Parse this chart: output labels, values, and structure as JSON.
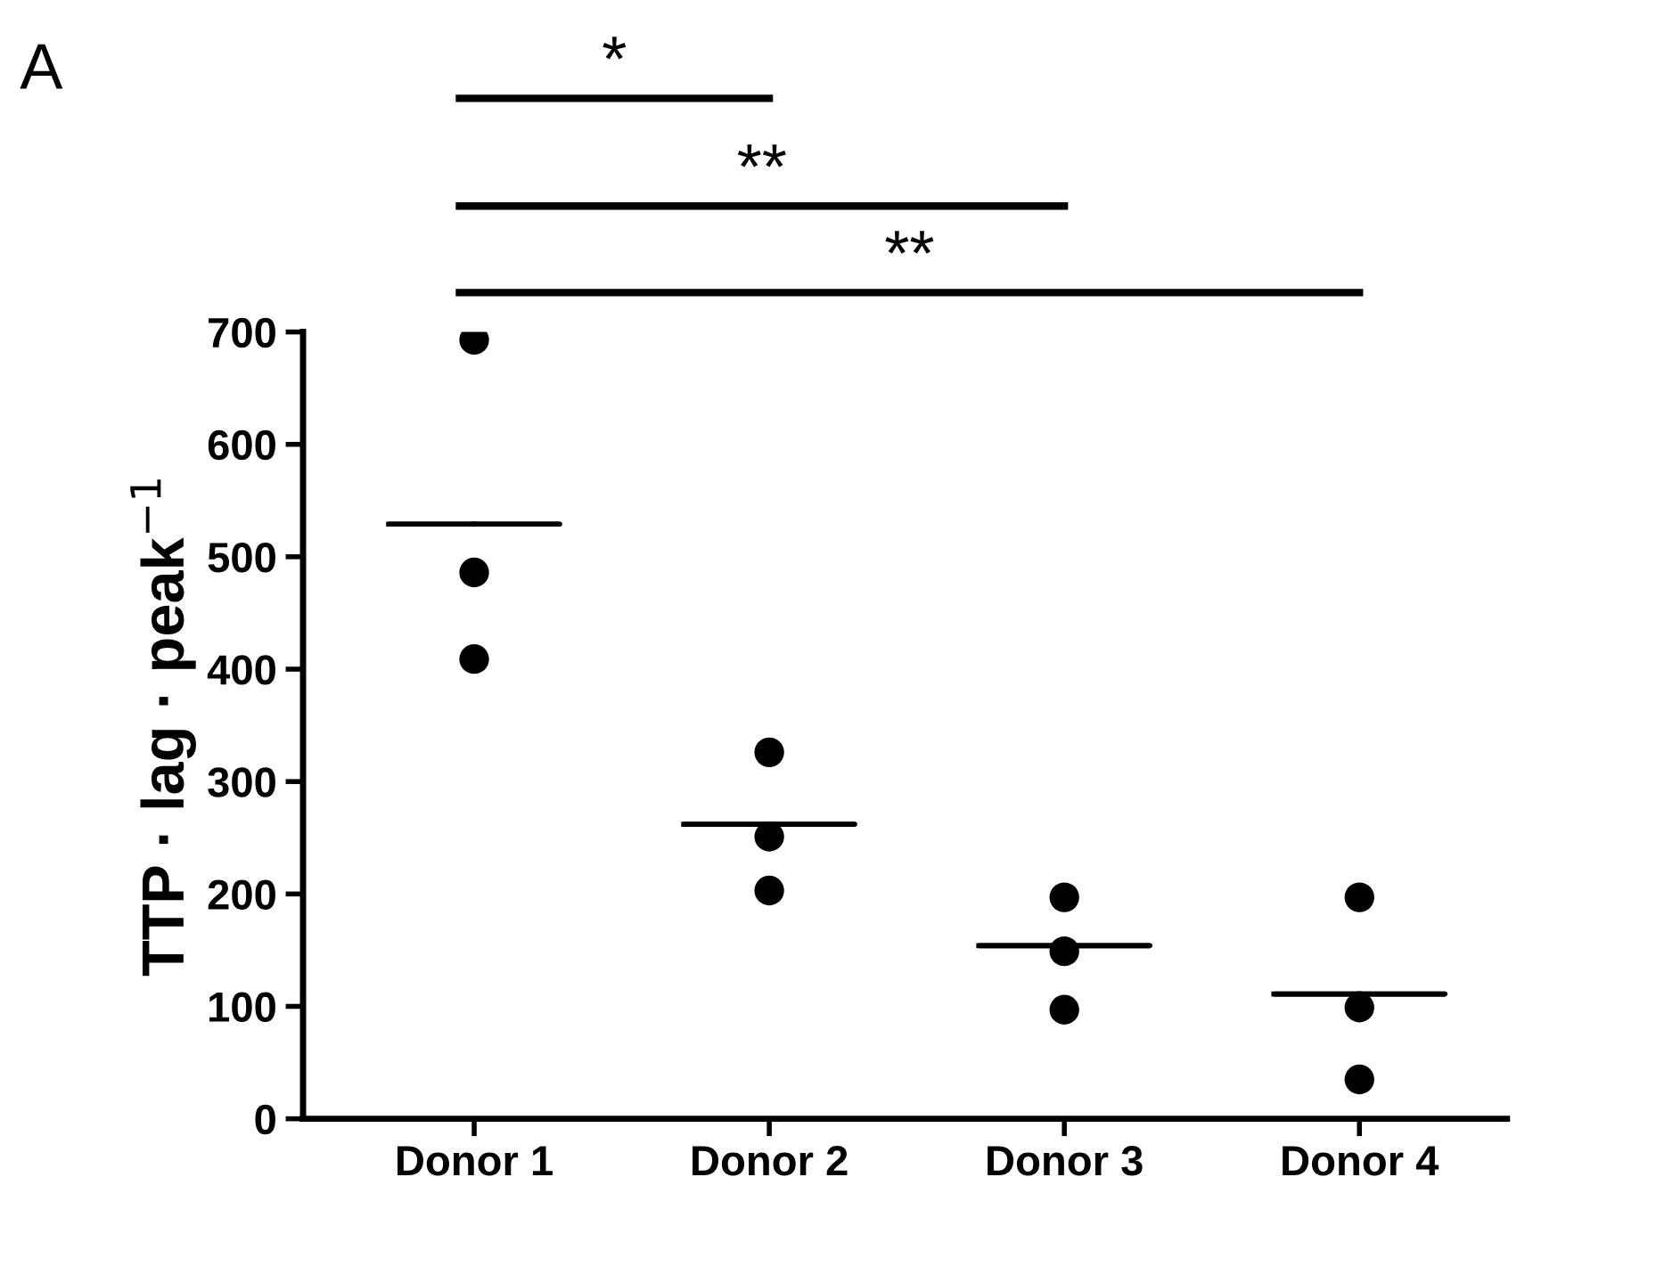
{
  "chart_data": {
    "type": "scatter",
    "ylabel": "TTP · lag · peak$^{−1}$",
    "categories": [
      "Donor 1",
      "Donor 2",
      "Donor 3",
      "Donor 4"
    ],
    "series": [
      {
        "marker": "circle",
        "color": "#000000",
        "x": [
          "Donor 1",
          "Donor 1",
          "Donor 1",
          "Donor 2",
          "Donor 2",
          "Donor 2",
          "Donor 3",
          "Donor 3",
          "Donor 3",
          "Donor 4",
          "Donor 4",
          "Donor 4"
        ],
        "values": [
          693,
          486,
          409,
          326,
          251,
          203,
          197,
          149,
          97,
          197,
          99,
          35
        ]
      },
      {
        "type": "box",
        "color": "#000000",
        "boxes": [
          {
            "low": 529,
            "q1": 529,
            "median": 529,
            "q3": 529,
            "high": 529
          },
          {
            "low": 262,
            "q1": 262,
            "median": 262,
            "q3": 262,
            "high": 262
          },
          {
            "low": 154,
            "q1": 154,
            "median": 154,
            "q3": 154,
            "high": 154
          },
          {
            "low": 111,
            "q1": 111,
            "median": 111,
            "q3": 111,
            "high": 111
          }
        ]
      }
    ],
    "ylim": [
      0,
      700
    ],
    "yticks": [
      0,
      100,
      200,
      300,
      400,
      500,
      600,
      700
    ],
    "grid": false,
    "legend": false,
    "annotations": [
      "A",
      "*",
      "**",
      "**"
    ]
  }
}
